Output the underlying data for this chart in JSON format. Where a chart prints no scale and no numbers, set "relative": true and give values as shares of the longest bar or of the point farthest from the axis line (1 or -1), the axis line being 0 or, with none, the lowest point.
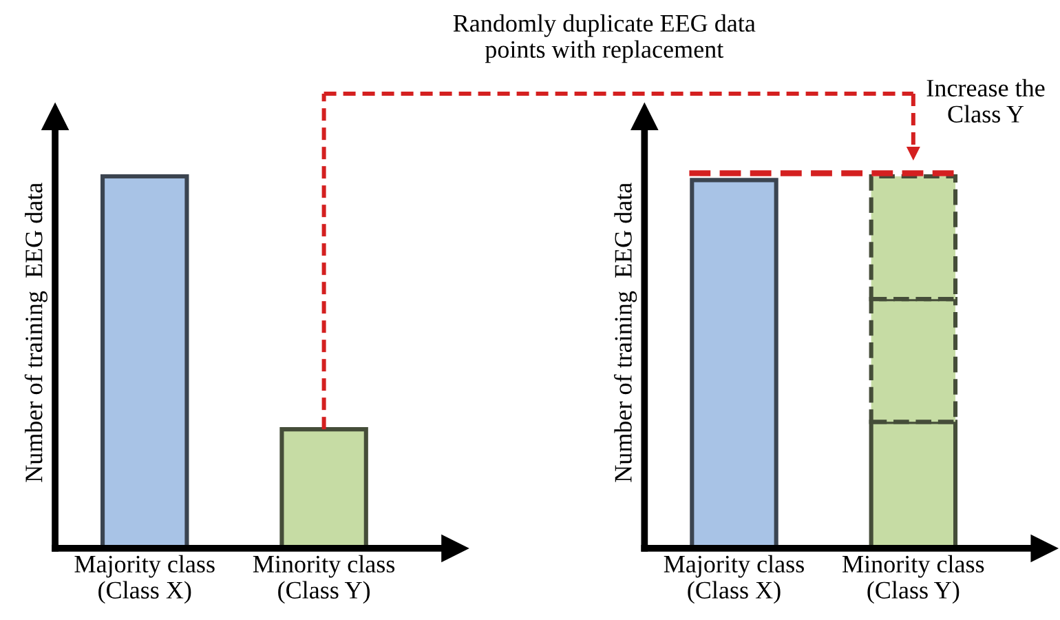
{
  "chart_data": [
    {
      "type": "bar",
      "relative": true,
      "ylabel": "Number of training  EEG data",
      "categories": [
        "Majority class\n(Class X)",
        "Minority class\n(Class Y)"
      ],
      "series": [
        {
          "colors": [
            "#a8c3e6",
            "#c6dca4"
          ],
          "values": [
            1,
            0.32
          ]
        }
      ],
      "annotations": [
        "Randomly duplicate EEG data\npoints with replacement"
      ]
    },
    {
      "type": "bar",
      "relative": true,
      "stacked": true,
      "ylabel": "Number of training  EEG data",
      "categories": [
        "Majority class\n(Class X)",
        "Minority class\n(Class Y)"
      ],
      "series": [
        {
          "colors": [
            "#a8c3e6",
            "#c6dca4"
          ],
          "values": [
            0.99,
            0.34
          ]
        },
        {
          "colors": [
            "#a8c3e6",
            "#c6dca4"
          ],
          "values": [
            null,
            0.33
          ],
          "line_style": "dashed"
        },
        {
          "colors": [
            "#a8c3e6",
            "#c6dca4"
          ],
          "values": [
            null,
            0.33
          ],
          "line_style": "dashed"
        }
      ],
      "annotations": [
        "Increase the\nClass Y"
      ]
    }
  ]
}
